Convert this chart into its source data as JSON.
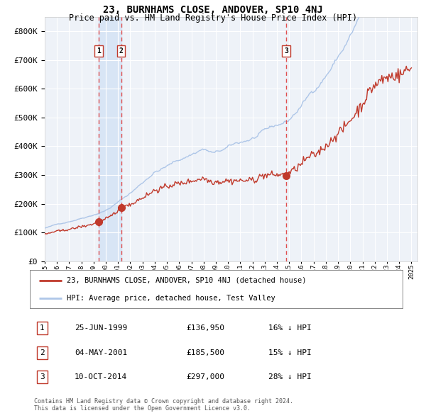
{
  "title": "23, BURNHAMS CLOSE, ANDOVER, SP10 4NJ",
  "subtitle": "Price paid vs. HM Land Registry's House Price Index (HPI)",
  "ylim": [
    0,
    850000
  ],
  "yticks": [
    0,
    100000,
    200000,
    300000,
    400000,
    500000,
    600000,
    700000,
    800000
  ],
  "ytick_labels": [
    "£0",
    "£100K",
    "£200K",
    "£300K",
    "£400K",
    "£500K",
    "£600K",
    "£700K",
    "£800K"
  ],
  "x_start_year": 1995,
  "x_end_year": 2025,
  "sale_prices": [
    136950,
    185500,
    297000
  ],
  "sale_labels": [
    "1",
    "2",
    "3"
  ],
  "hpi_color": "#aec6e8",
  "price_color": "#c0392b",
  "shade_color": "#d6e4f5",
  "dashed_line_color": "#e05050",
  "background_color": "#eef2f8",
  "grid_color": "#ffffff",
  "legend_entries": [
    "23, BURNHAMS CLOSE, ANDOVER, SP10 4NJ (detached house)",
    "HPI: Average price, detached house, Test Valley"
  ],
  "table_rows": [
    {
      "num": "1",
      "date": "25-JUN-1999",
      "price": "£136,950",
      "note": "16% ↓ HPI"
    },
    {
      "num": "2",
      "date": "04-MAY-2001",
      "price": "£185,500",
      "note": "15% ↓ HPI"
    },
    {
      "num": "3",
      "date": "10-OCT-2014",
      "price": "£297,000",
      "note": "28% ↓ HPI"
    }
  ],
  "footnote1": "Contains HM Land Registry data © Crown copyright and database right 2024.",
  "footnote2": "This data is licensed under the Open Government Licence v3.0."
}
